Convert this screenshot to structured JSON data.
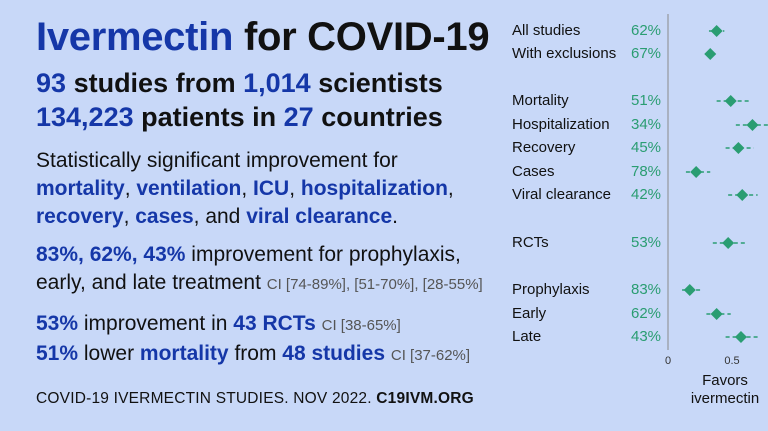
{
  "headline": {
    "drug": "Ivermectin",
    "for_text": "for COVID-19"
  },
  "stats": {
    "studies_num": "93",
    "studies_mid": "studies from",
    "scientists_num": "1,014",
    "scientists_text": "scientists",
    "patients_num": "134,223",
    "patients_mid": "patients in",
    "countries_num": "27",
    "countries_text": "countries"
  },
  "summary": {
    "intro": "Statistically significant improvement for",
    "outcomes": [
      "mortality",
      "ventilation",
      "ICU",
      "hospitalization",
      "recovery",
      "cases",
      "viral clearance"
    ],
    "sep": ", ",
    "and": ", and ",
    "end": "."
  },
  "treatment": {
    "pcts": "83%, 62%, 43%",
    "text1": "improvement for prophylaxis,",
    "text2": "early, and late treatment",
    "ci": "CI [74-89%], [51-70%], [28-55%]"
  },
  "rct": {
    "pct": "53%",
    "mid": "improvement in",
    "count": "43 RCTs",
    "ci": "CI [38-65%]"
  },
  "mortality_line": {
    "pct": "51%",
    "mid": "lower",
    "word": "mortality",
    "from": "from",
    "count": "48",
    "end": "studies",
    "ci": "CI [37-62%]"
  },
  "footer": {
    "text": "COVID-19 IVERMECTIN STUDIES. NOV 2022.",
    "site_bold": "C19",
    "site_rest": "IVM.ORG"
  },
  "chart_data": {
    "type": "scatter",
    "title": "",
    "xlabel": "Favors ivermectin",
    "x_ticks": [
      "0",
      "0.5"
    ],
    "xlim": [
      0,
      0.95
    ],
    "rows": [
      {
        "label": "All studies",
        "pct": "62%",
        "rr": 0.38,
        "ci": [
          0.32,
          0.44
        ]
      },
      {
        "label": "With exclusions",
        "pct": "67%",
        "rr": 0.33,
        "ci": [
          0.29,
          0.37
        ]
      },
      {
        "label": "Mortality",
        "pct": "51%",
        "rr": 0.49,
        "ci": [
          0.38,
          0.63
        ]
      },
      {
        "label": "Hospitalization",
        "pct": "34%",
        "rr": 0.66,
        "ci": [
          0.53,
          0.82
        ]
      },
      {
        "label": "Recovery",
        "pct": "45%",
        "rr": 0.55,
        "ci": [
          0.45,
          0.67
        ]
      },
      {
        "label": "Cases",
        "pct": "78%",
        "rr": 0.22,
        "ci": [
          0.14,
          0.33
        ]
      },
      {
        "label": "Viral clearance",
        "pct": "42%",
        "rr": 0.58,
        "ci": [
          0.47,
          0.7
        ]
      },
      {
        "label": "RCTs",
        "pct": "53%",
        "rr": 0.47,
        "ci": [
          0.35,
          0.62
        ]
      },
      {
        "label": "Prophylaxis",
        "pct": "83%",
        "rr": 0.17,
        "ci": [
          0.11,
          0.26
        ]
      },
      {
        "label": "Early",
        "pct": "62%",
        "rr": 0.38,
        "ci": [
          0.3,
          0.49
        ]
      },
      {
        "label": "Late",
        "pct": "43%",
        "rr": 0.57,
        "ci": [
          0.45,
          0.72
        ]
      }
    ],
    "colors": {
      "point": "#2a9d72",
      "ci_line": "#2a9d72",
      "axis": "#8a8a8a"
    }
  }
}
